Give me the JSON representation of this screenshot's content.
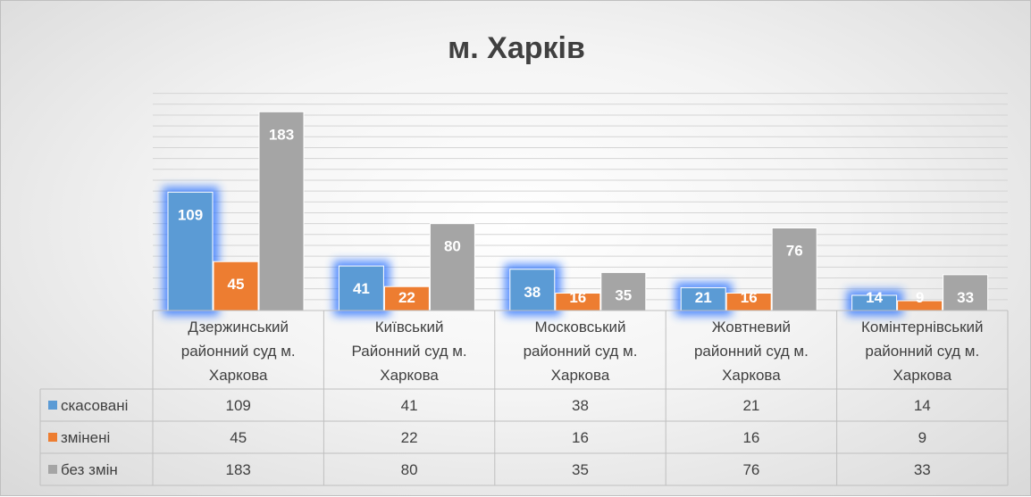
{
  "chart_data": {
    "type": "bar",
    "title": "м. Харків",
    "categories": [
      [
        "Дзержинський",
        "районний суд м.",
        "Харкова"
      ],
      [
        "Київський",
        "Районний суд м.",
        "Харкова"
      ],
      [
        "Московський",
        "районний суд м.",
        "Харкова"
      ],
      [
        "Жовтневий",
        "районний суд м.",
        "Харкова"
      ],
      [
        "Комінтернівський",
        "районний суд м.",
        "Харкова"
      ]
    ],
    "series": [
      {
        "name": "скасовані",
        "values": [
          109,
          41,
          38,
          21,
          14
        ]
      },
      {
        "name": "змінені",
        "values": [
          45,
          22,
          16,
          16,
          9
        ]
      },
      {
        "name": "без змін",
        "values": [
          183,
          80,
          35,
          76,
          33
        ]
      }
    ],
    "ylim": [
      0,
      200
    ],
    "grid": true,
    "legend": "data-table-left",
    "colors": [
      "#5b9bd5",
      "#ed7d31",
      "#a5a5a5"
    ],
    "highlight_color": "#2e75ff"
  }
}
